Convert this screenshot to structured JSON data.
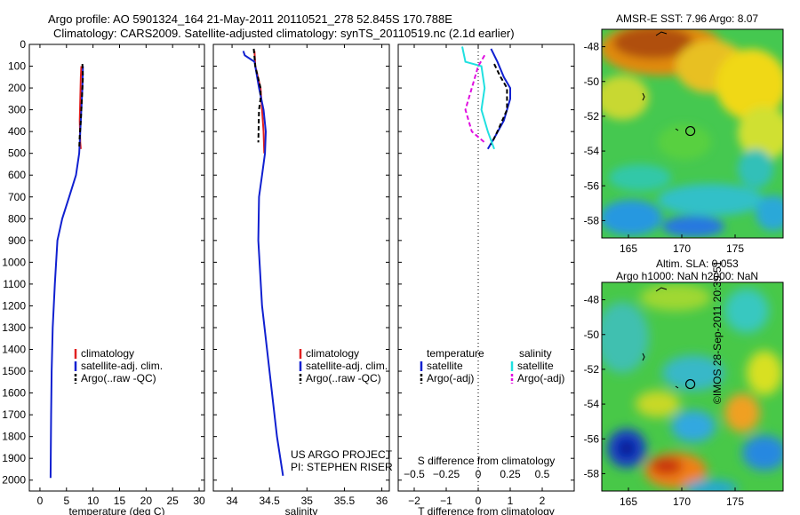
{
  "title_line1": "Argo profile: AO 5901324_164 21-May-2011 20110521_278 52.845S 170.788E",
  "title_line2": "Climatology: CARS2009. Satellite-adjusted climatology: synTS_20110519.nc (2.1d earlier)",
  "sst_title": "AMSR-E SST: 7.96 Argo: 8.07",
  "sla_title1": "Altim. SLA: 0.053",
  "sla_title2": "Argo h1000: NaN h2000: NaN",
  "credit": "©IMOS 28-Sep-2011 20:39:51",
  "project_line1": "US ARGO PROJECT",
  "project_line2": "PI: STEPHEN RISER",
  "colors": {
    "climatology": "#e02020",
    "satellite": "#1020d0",
    "argo": "#000000",
    "sal_sat": "#20e0e0",
    "sal_argo": "#e010e0"
  },
  "chart_data": [
    {
      "type": "line",
      "id": "temperature",
      "xlabel": "temperature (deg C)",
      "xlim": [
        -2,
        31
      ],
      "xticks": [
        0,
        5,
        10,
        15,
        20,
        25,
        30
      ],
      "xtick_labels": [
        "0",
        "5",
        "10",
        "15",
        "20",
        "25",
        "30"
      ],
      "ylim": [
        0,
        2050
      ],
      "yticks": [
        0,
        100,
        200,
        300,
        400,
        500,
        600,
        700,
        800,
        900,
        1000,
        1100,
        1200,
        1300,
        1400,
        1500,
        1600,
        1700,
        1800,
        1900,
        2000
      ],
      "ytick_labels": [
        "0",
        "100",
        "200",
        "300",
        "400",
        "500",
        "600",
        "700",
        "800",
        "900",
        "1000",
        "1100",
        "1200",
        "1300",
        "1400",
        "1500",
        "1600",
        "1700",
        "1800",
        "1900",
        "2000"
      ],
      "y_reversed": true,
      "legend": {
        "placement": "lower-middle",
        "entries": [
          "climatology",
          "satellite-adj. clim.",
          "Argo(..raw -QC)"
        ]
      },
      "series": [
        {
          "name": "climatology",
          "color": "#e02020",
          "dash": "",
          "x": [
            7.8,
            7.7,
            7.6,
            7.5,
            7.6,
            7.7
          ],
          "y": [
            100,
            150,
            250,
            350,
            450,
            480
          ]
        },
        {
          "name": "satellite-adj. clim.",
          "color": "#1020d0",
          "dash": "",
          "x": [
            8.1,
            8.0,
            7.8,
            7.6,
            7.4,
            6.8,
            5.5,
            4.2,
            3.3,
            2.8,
            2.4,
            2.2,
            2.1,
            2.0
          ],
          "y": [
            100,
            200,
            300,
            400,
            500,
            600,
            700,
            800,
            900,
            1100,
            1300,
            1500,
            1700,
            1990
          ]
        },
        {
          "name": "Argo(..raw -QC)",
          "color": "#000000",
          "dash": "5,3",
          "x": [
            8.0,
            8.1,
            7.9,
            7.7,
            7.5,
            7.4
          ],
          "y": [
            90,
            150,
            250,
            350,
            420,
            480
          ]
        }
      ]
    },
    {
      "type": "line",
      "id": "salinity",
      "xlabel": "salinity",
      "xlim": [
        33.75,
        36.1
      ],
      "xticks": [
        34,
        34.5,
        35,
        35.5,
        36
      ],
      "xtick_labels": [
        "34",
        "34.5",
        "35",
        "35.5",
        "36"
      ],
      "ylim": [
        0,
        2050
      ],
      "y_reversed": true,
      "legend": {
        "placement": "lower-right",
        "entries": [
          "climatology",
          "satellite-adj. clim.",
          "Argo(..raw -QC)"
        ]
      },
      "series": [
        {
          "name": "climatology",
          "color": "#e02020",
          "dash": "",
          "x": [
            34.3,
            34.31,
            34.38,
            34.4,
            34.42,
            34.43
          ],
          "y": [
            30,
            100,
            200,
            300,
            400,
            500
          ]
        },
        {
          "name": "satellite-adj. clim.",
          "color": "#1020d0",
          "dash": "",
          "x": [
            34.15,
            34.17,
            34.3,
            34.36,
            34.42,
            34.45,
            34.44,
            34.4,
            34.36,
            34.35,
            34.4,
            34.5,
            34.6,
            34.68
          ],
          "y": [
            30,
            50,
            80,
            200,
            300,
            400,
            500,
            600,
            700,
            900,
            1200,
            1500,
            1800,
            1980
          ]
        },
        {
          "name": "Argo(..raw -QC)",
          "color": "#000000",
          "dash": "5,3",
          "x": [
            34.29,
            34.31,
            34.38,
            34.38,
            34.36,
            34.35
          ],
          "y": [
            20,
            100,
            200,
            250,
            300,
            450
          ]
        }
      ]
    },
    {
      "type": "line",
      "id": "difference",
      "xlabel": "T difference from climatology",
      "x2label": "S difference from climatology",
      "xlim": [
        -2.5,
        3.0
      ],
      "xticks": [
        -2,
        -1,
        0,
        1,
        2
      ],
      "xtick_labels": [
        "−2",
        "−1",
        "0",
        "1",
        "2"
      ],
      "x2ticks": [
        -2,
        -1,
        0,
        1,
        2
      ],
      "x2tick_labels": [
        "−0.5",
        "−0.25",
        "0",
        "0.25",
        "0.5"
      ],
      "ylim": [
        0,
        2050
      ],
      "y_reversed": true,
      "zero_line": true,
      "legend": {
        "placement": "lower",
        "col1_title": "temperature",
        "col2_title": "salinity",
        "entries": [
          "satellite",
          "Argo(-adj)",
          "satellite",
          "Argo(-adj)"
        ]
      },
      "series": [
        {
          "name": "satellite",
          "color": "#1020d0",
          "dash": "",
          "x": [
            0.4,
            0.6,
            0.8,
            1.0,
            1.0,
            0.8,
            0.5,
            0.3
          ],
          "y": [
            20,
            80,
            150,
            200,
            250,
            350,
            430,
            480
          ]
        },
        {
          "name": "Argo(-adj)",
          "color": "#000000",
          "dash": "5,3",
          "x": [
            0.5,
            0.7,
            0.9,
            0.9,
            0.6,
            0.4
          ],
          "y": [
            90,
            150,
            200,
            300,
            400,
            460
          ]
        },
        {
          "name": "satellite",
          "color": "#20e0e0",
          "dash": "",
          "x": [
            -0.5,
            -0.4,
            0.1,
            0.2,
            0.1,
            0.3,
            0.5
          ],
          "y": [
            10,
            80,
            100,
            200,
            300,
            400,
            480
          ]
        },
        {
          "name": "Argo(-adj)",
          "color": "#e010e0",
          "dash": "5,3",
          "x": [
            0.2,
            0.0,
            -0.2,
            -0.4,
            -0.2,
            0.2
          ],
          "y": [
            50,
            100,
            200,
            300,
            400,
            450
          ]
        }
      ]
    },
    {
      "type": "heatmap",
      "id": "sst_map",
      "title": "AMSR-E SST: 7.96 Argo: 8.07",
      "xlim": [
        162.5,
        179.5
      ],
      "ylim": [
        -59,
        -47
      ],
      "xticks": [
        165,
        170,
        175
      ],
      "yticks": [
        -48,
        -50,
        -52,
        -54,
        -56,
        -58
      ],
      "ytick_labels": [
        "-48",
        "-50",
        "-52",
        "-54",
        "-56",
        "-58"
      ],
      "marker": {
        "lon": 170.8,
        "lat": -52.85
      }
    },
    {
      "type": "heatmap",
      "id": "sla_map",
      "title": "Altim. SLA: 0.053",
      "subtitle": "Argo h1000: NaN h2000: NaN",
      "xlim": [
        162.5,
        179.5
      ],
      "ylim": [
        -59,
        -47
      ],
      "xticks": [
        165,
        170,
        175
      ],
      "yticks": [
        -48,
        -50,
        -52,
        -54,
        -56,
        -58
      ],
      "ytick_labels": [
        "-48",
        "-50",
        "-52",
        "-54",
        "-56",
        "-58"
      ],
      "marker": {
        "lon": 170.8,
        "lat": -52.85
      }
    }
  ]
}
